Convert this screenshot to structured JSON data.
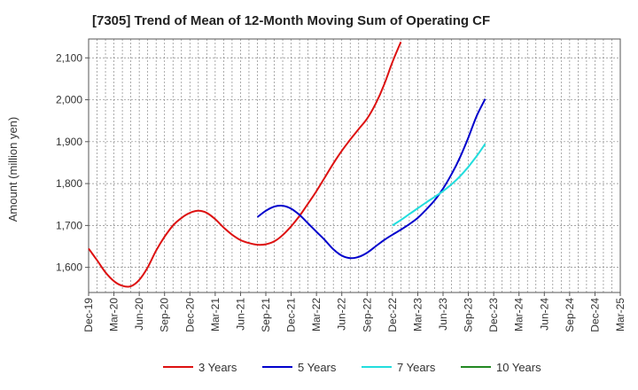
{
  "chart_data": {
    "type": "line",
    "title": "[7305]  Trend of Mean of 12-Month Moving Sum of Operating CF",
    "xlabel": "",
    "ylabel": "Amount (million yen)",
    "ylim": [
      1540,
      2145
    ],
    "yticks": [
      1600,
      1700,
      1800,
      1900,
      2000,
      2100
    ],
    "ytick_labels": [
      "1,600",
      "1,700",
      "1,800",
      "1,900",
      "2,000",
      "2,100"
    ],
    "x_categories": [
      "Dec-19",
      "Mar-20",
      "Jun-20",
      "Sep-20",
      "Dec-20",
      "Mar-21",
      "Jun-21",
      "Sep-21",
      "Dec-21",
      "Mar-22",
      "Jun-22",
      "Sep-22",
      "Dec-22",
      "Mar-23",
      "Jun-23",
      "Sep-23",
      "Dec-23",
      "Mar-24",
      "Jun-24",
      "Sep-24",
      "Dec-24",
      "Mar-25"
    ],
    "grid": true,
    "legend_position": "bottom",
    "series": [
      {
        "name": "3 Years",
        "color": "#dd1111",
        "points": [
          [
            0,
            1645
          ],
          [
            1,
            1617
          ],
          [
            2,
            1588
          ],
          [
            3,
            1567
          ],
          [
            4,
            1556
          ],
          [
            5,
            1555
          ],
          [
            6,
            1570
          ],
          [
            7,
            1600
          ],
          [
            8,
            1640
          ],
          [
            9,
            1673
          ],
          [
            10,
            1700
          ],
          [
            11,
            1718
          ],
          [
            12,
            1730
          ],
          [
            13,
            1735
          ],
          [
            14,
            1730
          ],
          [
            15,
            1715
          ],
          [
            16,
            1695
          ],
          [
            17,
            1678
          ],
          [
            18,
            1665
          ],
          [
            19,
            1658
          ],
          [
            20,
            1654
          ],
          [
            21,
            1655
          ],
          [
            22,
            1662
          ],
          [
            23,
            1677
          ],
          [
            24,
            1698
          ],
          [
            25,
            1723
          ],
          [
            26,
            1752
          ],
          [
            27,
            1782
          ],
          [
            28,
            1815
          ],
          [
            29,
            1848
          ],
          [
            30,
            1878
          ],
          [
            31,
            1905
          ],
          [
            32,
            1930
          ],
          [
            33,
            1955
          ],
          [
            34,
            1990
          ],
          [
            35,
            2035
          ],
          [
            36,
            2090
          ],
          [
            37,
            2138
          ]
        ]
      },
      {
        "name": "5 Years",
        "color": "#0000cc",
        "points": [
          [
            20,
            1720
          ],
          [
            21,
            1735
          ],
          [
            22,
            1745
          ],
          [
            23,
            1747
          ],
          [
            24,
            1740
          ],
          [
            25,
            1725
          ],
          [
            26,
            1705
          ],
          [
            27,
            1685
          ],
          [
            28,
            1665
          ],
          [
            29,
            1643
          ],
          [
            30,
            1628
          ],
          [
            31,
            1622
          ],
          [
            32,
            1625
          ],
          [
            33,
            1635
          ],
          [
            34,
            1650
          ],
          [
            35,
            1665
          ],
          [
            36,
            1678
          ],
          [
            37,
            1690
          ],
          [
            38,
            1703
          ],
          [
            39,
            1718
          ],
          [
            40,
            1738
          ],
          [
            41,
            1760
          ],
          [
            42,
            1788
          ],
          [
            43,
            1822
          ],
          [
            44,
            1862
          ],
          [
            45,
            1910
          ],
          [
            46,
            1962
          ],
          [
            47,
            2002
          ]
        ]
      },
      {
        "name": "7 Years",
        "color": "#22dddd",
        "points": [
          [
            36,
            1700
          ],
          [
            37,
            1713
          ],
          [
            38,
            1727
          ],
          [
            39,
            1741
          ],
          [
            40,
            1755
          ],
          [
            41,
            1768
          ],
          [
            42,
            1782
          ],
          [
            43,
            1798
          ],
          [
            44,
            1817
          ],
          [
            45,
            1840
          ],
          [
            46,
            1866
          ],
          [
            47,
            1895
          ]
        ]
      },
      {
        "name": "10 Years",
        "color": "#228822",
        "points": []
      }
    ]
  }
}
